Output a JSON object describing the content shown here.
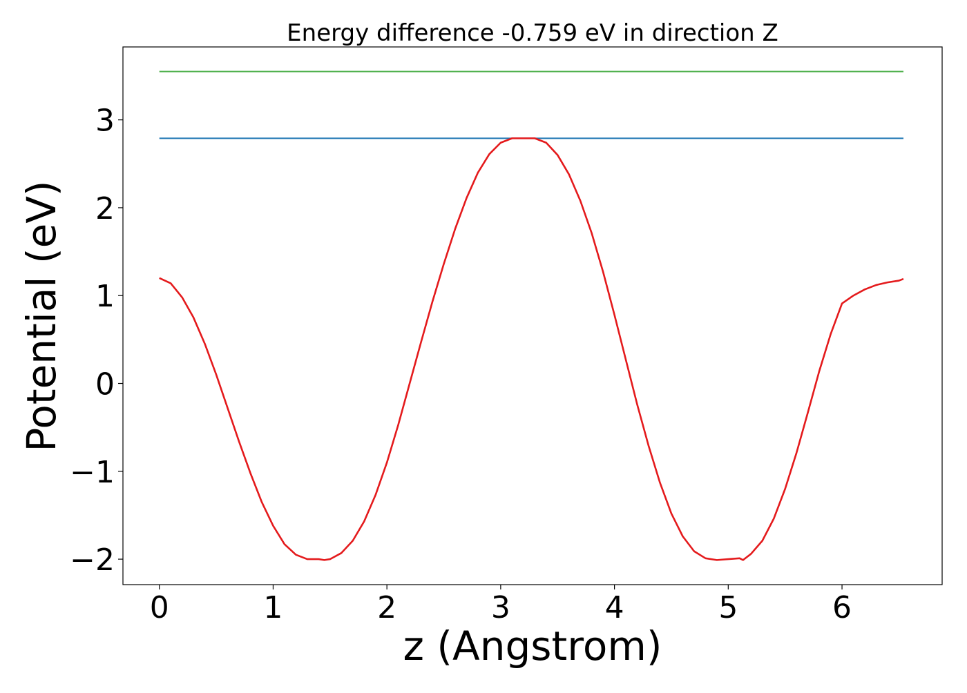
{
  "chart_data": {
    "type": "line",
    "title": "Energy difference -0.759 eV in direction Z",
    "xlabel": "z (Angstrom)",
    "ylabel": "Potential (eV)",
    "xlim": [
      -0.32,
      6.88
    ],
    "ylim": [
      -2.29,
      3.83
    ],
    "xticks": [
      0,
      1,
      2,
      3,
      4,
      5,
      6
    ],
    "xtick_labels": [
      "0",
      "1",
      "2",
      "3",
      "4",
      "5",
      "6"
    ],
    "yticks": [
      -2,
      -1,
      0,
      1,
      2,
      3
    ],
    "ytick_labels": [
      "−2",
      "−1",
      "0",
      "1",
      "2",
      "3"
    ],
    "grid": false,
    "legend": "none",
    "series": [
      {
        "kind": "curve",
        "color": "#e41a1c",
        "x": [
          0.0,
          0.1,
          0.2,
          0.3,
          0.4,
          0.5,
          0.6,
          0.7,
          0.8,
          0.9,
          1.0,
          1.1,
          1.2,
          1.3,
          1.4,
          1.45,
          1.5,
          1.6,
          1.7,
          1.8,
          1.9,
          2.0,
          2.1,
          2.2,
          2.3,
          2.4,
          2.5,
          2.6,
          2.7,
          2.8,
          2.9,
          3.0,
          3.1,
          3.2,
          3.3,
          3.4,
          3.5,
          3.6,
          3.7,
          3.8,
          3.9,
          4.0,
          4.1,
          4.2,
          4.3,
          4.4,
          4.5,
          4.6,
          4.7,
          4.8,
          4.9,
          5.0,
          5.1,
          5.13,
          5.2,
          5.3,
          5.4,
          5.5,
          5.6,
          5.7,
          5.8,
          5.9,
          6.0,
          6.1,
          6.2,
          6.3,
          6.4,
          6.5,
          6.54
        ],
        "y": [
          1.2,
          1.14,
          0.98,
          0.75,
          0.45,
          0.1,
          -0.28,
          -0.66,
          -1.02,
          -1.35,
          -1.62,
          -1.83,
          -1.95,
          -2.0,
          -2.0,
          -2.01,
          -2.0,
          -1.93,
          -1.79,
          -1.57,
          -1.27,
          -0.9,
          -0.47,
          0.0,
          0.47,
          0.93,
          1.36,
          1.76,
          2.11,
          2.4,
          2.61,
          2.74,
          2.79,
          2.79,
          2.79,
          2.74,
          2.6,
          2.38,
          2.08,
          1.71,
          1.27,
          0.78,
          0.27,
          -0.24,
          -0.71,
          -1.13,
          -1.48,
          -1.74,
          -1.91,
          -1.99,
          -2.01,
          -2.0,
          -1.99,
          -2.01,
          -1.94,
          -1.79,
          -1.54,
          -1.2,
          -0.79,
          -0.33,
          0.14,
          0.56,
          0.91,
          1.0,
          1.07,
          1.12,
          1.15,
          1.17,
          1.19
        ]
      },
      {
        "kind": "hline",
        "color": "#1f77b4",
        "x": [
          0.0,
          6.54
        ],
        "y": [
          2.79,
          2.79
        ]
      },
      {
        "kind": "hline",
        "color": "#4daf4a",
        "x": [
          0.0,
          6.54
        ],
        "y": [
          3.55,
          3.55
        ]
      }
    ]
  }
}
